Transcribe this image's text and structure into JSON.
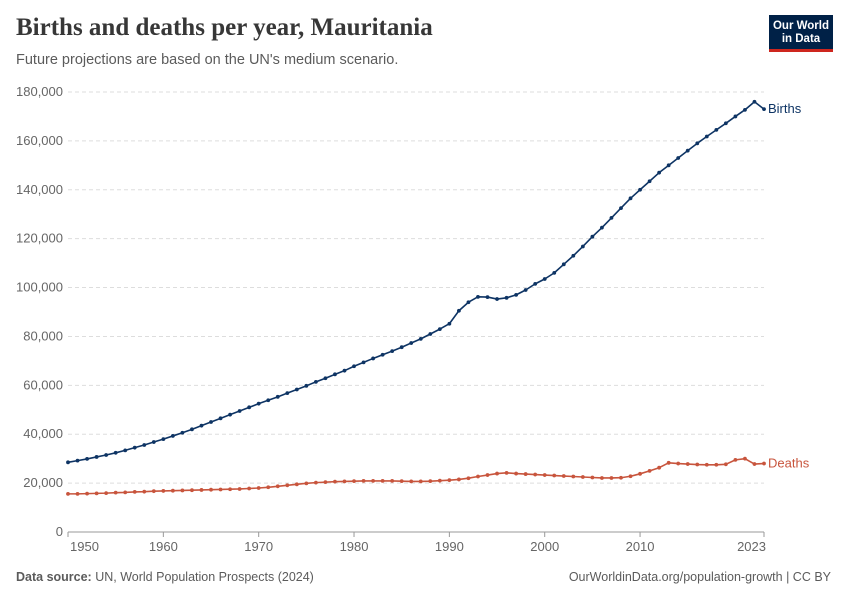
{
  "header": {
    "title": "Births and deaths per year, Mauritania",
    "subtitle": "Future projections are based on the UN's medium scenario."
  },
  "logo": {
    "line1": "Our World",
    "line2": "in Data",
    "bg_color": "#002147",
    "accent_color": "#ce261e"
  },
  "footer": {
    "source_label": "Data source:",
    "source_text": "UN, World Population Prospects (2024)",
    "credit": "OurWorldinData.org/population-growth | CC BY"
  },
  "chart_data": {
    "type": "line",
    "title": "Births and deaths per year, Mauritania",
    "subtitle": "Future projections are based on the UN's medium scenario.",
    "xlabel": "",
    "ylabel": "",
    "xlim": [
      1950,
      2023
    ],
    "ylim": [
      0,
      180000
    ],
    "grid": true,
    "legend": "inline-right",
    "x_ticks": [
      1950,
      1960,
      1970,
      1980,
      1990,
      2000,
      2010,
      2023
    ],
    "y_ticks": [
      0,
      20000,
      40000,
      60000,
      80000,
      100000,
      120000,
      140000,
      160000,
      180000
    ],
    "y_tick_labels": [
      "0",
      "20,000",
      "40,000",
      "60,000",
      "80,000",
      "100,000",
      "120,000",
      "140,000",
      "160,000",
      "180,000"
    ],
    "x": [
      1950,
      1951,
      1952,
      1953,
      1954,
      1955,
      1956,
      1957,
      1958,
      1959,
      1960,
      1961,
      1962,
      1963,
      1964,
      1965,
      1966,
      1967,
      1968,
      1969,
      1970,
      1971,
      1972,
      1973,
      1974,
      1975,
      1976,
      1977,
      1978,
      1979,
      1980,
      1981,
      1982,
      1983,
      1984,
      1985,
      1986,
      1987,
      1988,
      1989,
      1990,
      1991,
      1992,
      1993,
      1994,
      1995,
      1996,
      1997,
      1998,
      1999,
      2000,
      2001,
      2002,
      2003,
      2004,
      2005,
      2006,
      2007,
      2008,
      2009,
      2010,
      2011,
      2012,
      2013,
      2014,
      2015,
      2016,
      2017,
      2018,
      2019,
      2020,
      2021,
      2022,
      2023
    ],
    "series": [
      {
        "name": "Births",
        "color": "#0e3464",
        "values": [
          28500,
          29200,
          29900,
          30700,
          31500,
          32400,
          33400,
          34500,
          35600,
          36800,
          38000,
          39300,
          40600,
          42000,
          43500,
          45000,
          46500,
          48000,
          49500,
          51000,
          52500,
          53900,
          55300,
          56800,
          58300,
          59800,
          61400,
          62900,
          64500,
          66000,
          67800,
          69400,
          71000,
          72500,
          74000,
          75600,
          77300,
          79000,
          81000,
          83000,
          85200,
          90500,
          94000,
          96200,
          96100,
          95300,
          95800,
          97000,
          99000,
          101500,
          103500,
          106000,
          109500,
          113000,
          116800,
          120800,
          124500,
          128500,
          132500,
          136500,
          140000,
          143500,
          147000,
          150000,
          153000,
          156000,
          159000,
          161800,
          164500,
          167200,
          170000,
          172700,
          176000,
          173000
        ],
        "label": "Births"
      },
      {
        "name": "Deaths",
        "color": "#c8553d",
        "values": [
          15600,
          15600,
          15700,
          15800,
          15900,
          16100,
          16200,
          16400,
          16500,
          16700,
          16800,
          16900,
          17000,
          17100,
          17200,
          17300,
          17400,
          17500,
          17600,
          17800,
          18000,
          18300,
          18700,
          19100,
          19500,
          19900,
          20200,
          20400,
          20600,
          20700,
          20800,
          20900,
          20900,
          20900,
          20900,
          20800,
          20700,
          20700,
          20800,
          21000,
          21200,
          21500,
          22000,
          22700,
          23300,
          23900,
          24200,
          23900,
          23700,
          23500,
          23300,
          23100,
          22900,
          22700,
          22500,
          22300,
          22100,
          22100,
          22200,
          22800,
          23800,
          25000,
          26300,
          28300,
          28000,
          27800,
          27600,
          27500,
          27500,
          27700,
          29500,
          30000,
          27800,
          28000
        ],
        "label": "Deaths"
      }
    ]
  }
}
